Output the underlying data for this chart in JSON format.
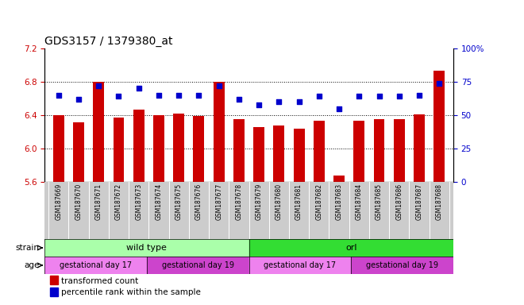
{
  "title": "GDS3157 / 1379380_at",
  "samples": [
    "GSM187669",
    "GSM187670",
    "GSM187671",
    "GSM187672",
    "GSM187673",
    "GSM187674",
    "GSM187675",
    "GSM187676",
    "GSM187677",
    "GSM187678",
    "GSM187679",
    "GSM187680",
    "GSM187681",
    "GSM187682",
    "GSM187683",
    "GSM187684",
    "GSM187685",
    "GSM187686",
    "GSM187687",
    "GSM187688"
  ],
  "bar_values": [
    6.4,
    6.31,
    6.8,
    6.37,
    6.47,
    6.4,
    6.42,
    6.39,
    6.8,
    6.35,
    6.26,
    6.28,
    6.24,
    6.33,
    5.68,
    6.33,
    6.35,
    6.35,
    6.41,
    6.93
  ],
  "percentile_values": [
    65,
    62,
    72,
    64,
    70,
    65,
    65,
    65,
    72,
    62,
    58,
    60,
    60,
    64,
    55,
    64,
    64,
    64,
    65,
    74
  ],
  "ylim_left": [
    5.6,
    7.2
  ],
  "ylim_right": [
    0,
    100
  ],
  "yticks_left": [
    5.6,
    6.0,
    6.4,
    6.8,
    7.2
  ],
  "yticks_right": [
    0,
    25,
    50,
    75,
    100
  ],
  "bar_color": "#cc0000",
  "percentile_color": "#0000cc",
  "bar_bottom": 5.6,
  "strain_groups": [
    {
      "label": "wild type",
      "start": 0,
      "end": 10,
      "color": "#aaffaa"
    },
    {
      "label": "orl",
      "start": 10,
      "end": 20,
      "color": "#33dd33"
    }
  ],
  "age_groups": [
    {
      "label": "gestational day 17",
      "start": 0,
      "end": 5,
      "color": "#ee82ee"
    },
    {
      "label": "gestational day 19",
      "start": 5,
      "end": 10,
      "color": "#cc44cc"
    },
    {
      "label": "gestational day 17",
      "start": 10,
      "end": 15,
      "color": "#ee82ee"
    },
    {
      "label": "gestational day 19",
      "start": 15,
      "end": 20,
      "color": "#cc44cc"
    }
  ],
  "legend_items": [
    {
      "label": "transformed count",
      "color": "#cc0000"
    },
    {
      "label": "percentile rank within the sample",
      "color": "#0000cc"
    }
  ],
  "grid_color": "black",
  "bg_color": "#ffffff",
  "title_fontsize": 10,
  "axis_label_color_left": "#cc0000",
  "axis_label_color_right": "#0000cc",
  "xtick_bg_color": "#cccccc",
  "grid_yticks": [
    6.0,
    6.4,
    6.8
  ]
}
